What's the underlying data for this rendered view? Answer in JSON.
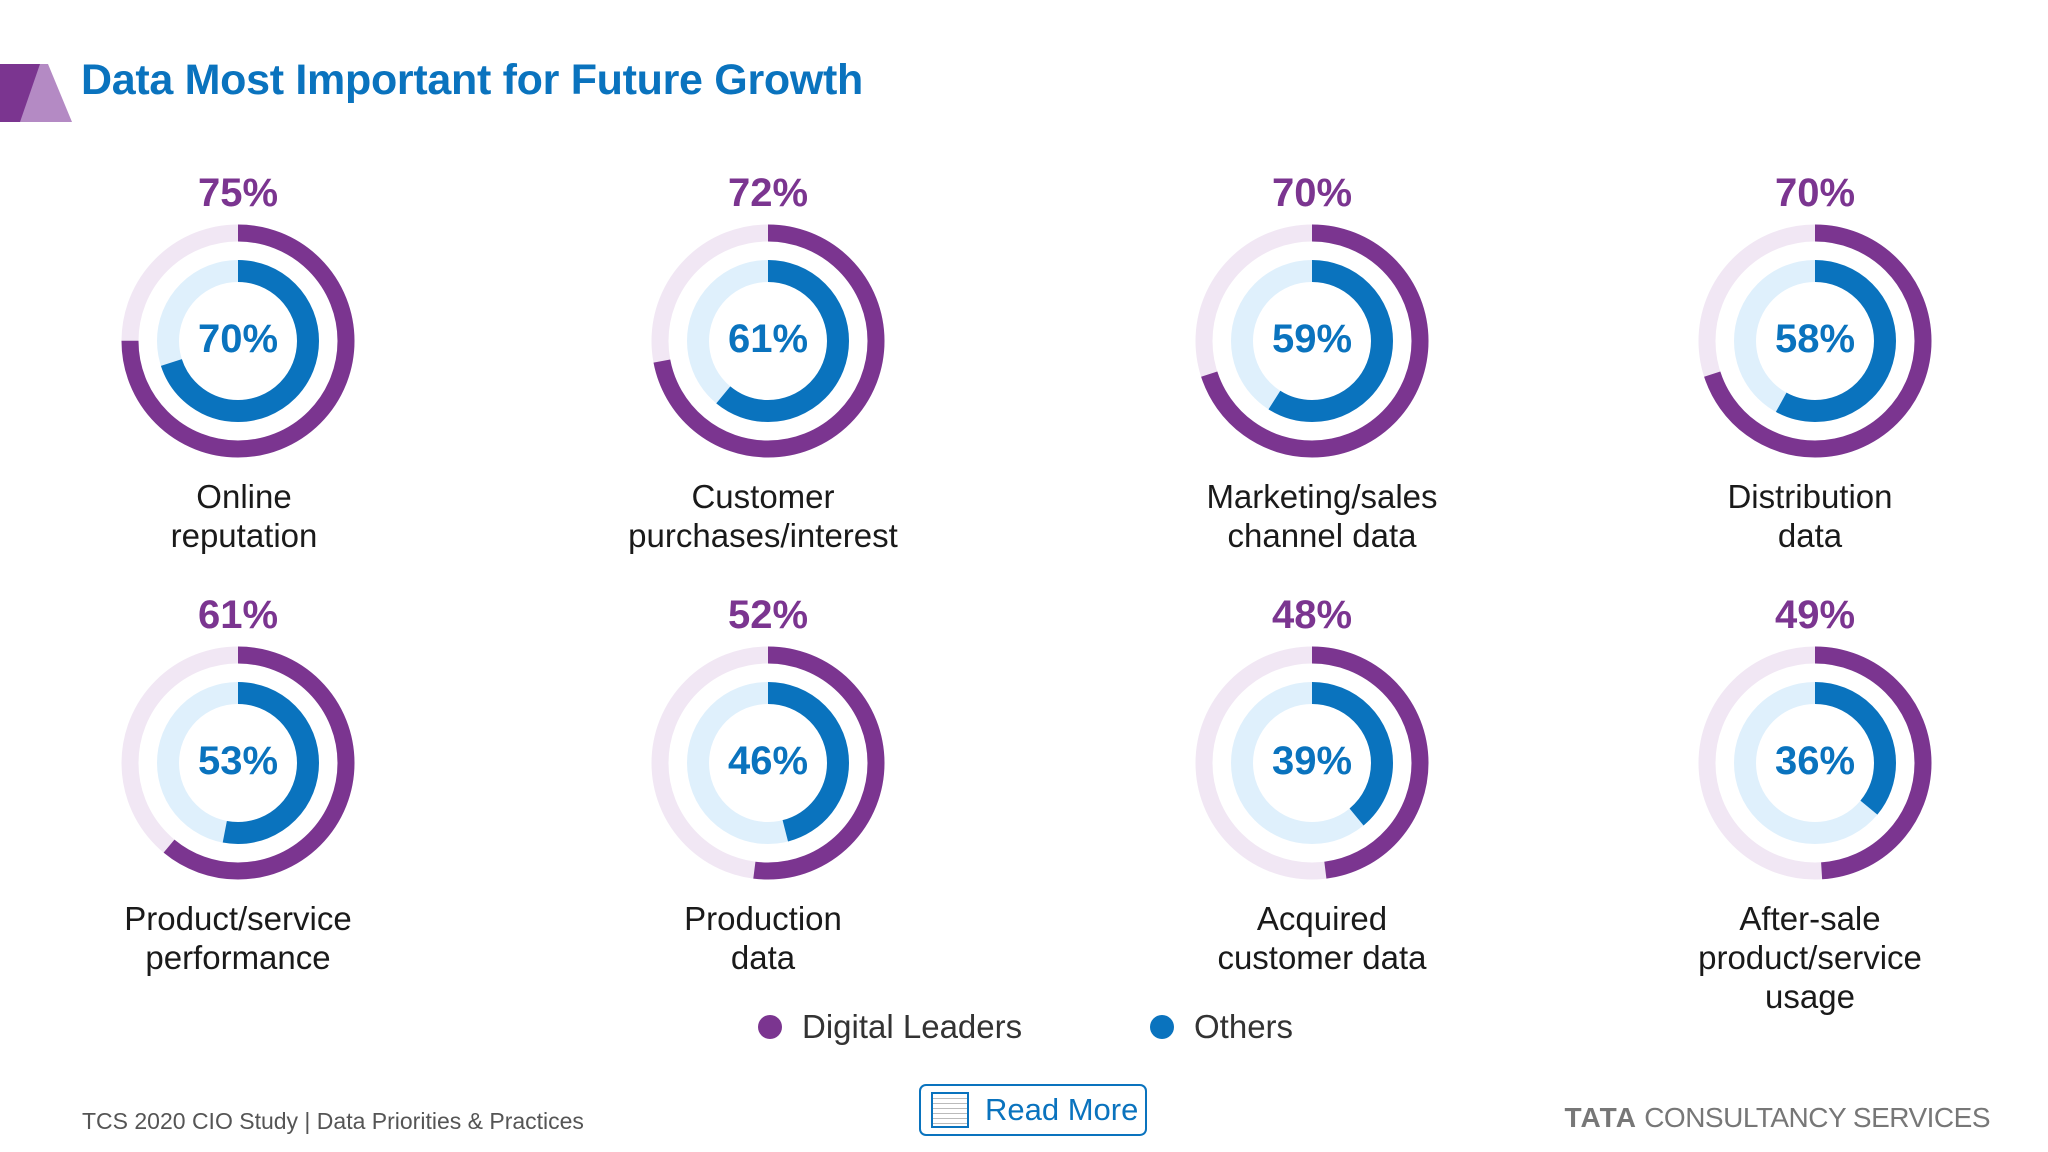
{
  "title": "Data Most Important for Future Growth",
  "colors": {
    "digital_leaders": "#7b3590",
    "others": "#0a73be",
    "title": "#0a73be"
  },
  "chart_data": {
    "type": "donut",
    "title": "Data Most Important for Future Growth",
    "series": [
      {
        "name": "Digital Leaders",
        "color": "#7b3590"
      },
      {
        "name": "Others",
        "color": "#0a73be"
      }
    ],
    "items": [
      {
        "label": "Online reputation",
        "label_lines": [
          "Online",
          "reputation"
        ],
        "digital_leaders": 75,
        "others": 70,
        "dl_text": "75%",
        "others_text": "70%"
      },
      {
        "label": "Customer purchases/interest",
        "label_lines": [
          "Customer",
          "purchases/interest"
        ],
        "digital_leaders": 72,
        "others": 61,
        "dl_text": "72%",
        "others_text": "61%"
      },
      {
        "label": "Marketing/sales channel data",
        "label_lines": [
          "Marketing/sales",
          "channel data"
        ],
        "digital_leaders": 70,
        "others": 59,
        "dl_text": "70%",
        "others_text": "59%"
      },
      {
        "label": "Distribution data",
        "label_lines": [
          "Distribution",
          "data"
        ],
        "digital_leaders": 70,
        "others": 58,
        "dl_text": "70%",
        "others_text": "58%"
      },
      {
        "label": "Product/service performance",
        "label_lines": [
          "Product/service",
          "performance"
        ],
        "digital_leaders": 61,
        "others": 53,
        "dl_text": "61%",
        "others_text": "53%"
      },
      {
        "label": "Production data",
        "label_lines": [
          "Production",
          "data"
        ],
        "digital_leaders": 52,
        "others": 46,
        "dl_text": "52%",
        "others_text": "46%"
      },
      {
        "label": "Acquired customer data",
        "label_lines": [
          "Acquired",
          "customer data"
        ],
        "digital_leaders": 48,
        "others": 39,
        "dl_text": "48%",
        "others_text": "39%"
      },
      {
        "label": "After-sale product/service usage",
        "label_lines": [
          "After-sale",
          "product/service",
          "usage"
        ],
        "digital_leaders": 49,
        "others": 36,
        "dl_text": "49%",
        "others_text": "36%"
      }
    ],
    "legend": [
      "Digital Leaders",
      "Others"
    ],
    "legend_position": "bottom"
  },
  "legend": {
    "digital_leaders": "Digital Leaders",
    "others": "Others"
  },
  "read_more": {
    "label": "Read More",
    "icon": "document-icon"
  },
  "footer": {
    "source": "TCS 2020 CIO Study | Data Priorities & Practices",
    "brand_bold": "TATA",
    "brand_rest": " CONSULTANCY SERVICES"
  }
}
